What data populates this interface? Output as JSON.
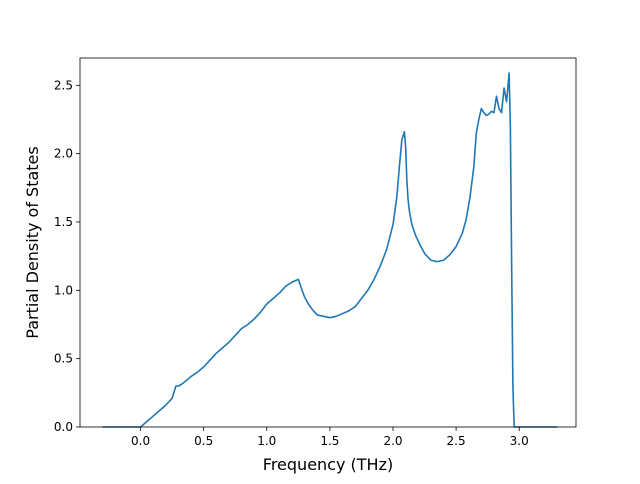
{
  "chart_data": {
    "type": "line",
    "title": "",
    "xlabel": "Frequency (THz)",
    "ylabel": "Partial Density of States",
    "xlim": [
      -0.48,
      3.45
    ],
    "ylim": [
      0.0,
      2.7
    ],
    "xticks": [
      0.0,
      0.5,
      1.0,
      1.5,
      2.0,
      2.5,
      3.0
    ],
    "xtick_labels": [
      "0.0",
      "0.5",
      "1.0",
      "1.5",
      "2.0",
      "2.5",
      "3.0"
    ],
    "yticks": [
      0.0,
      0.5,
      1.0,
      1.5,
      2.0,
      2.5
    ],
    "ytick_labels": [
      "0.0",
      "0.5",
      "1.0",
      "1.5",
      "2.0",
      "2.5"
    ],
    "grid": false,
    "legend": false,
    "colors": {
      "line": "#1f77b4",
      "frame": "#000000",
      "background": "#ffffff"
    },
    "series": [
      {
        "x": [
          -0.3,
          0.0,
          0.05,
          0.1,
          0.15,
          0.2,
          0.25,
          0.28,
          0.3,
          0.32,
          0.35,
          0.4,
          0.45,
          0.5,
          0.55,
          0.6,
          0.65,
          0.7,
          0.75,
          0.8,
          0.85,
          0.9,
          0.95,
          1.0,
          1.05,
          1.1,
          1.15,
          1.2,
          1.25,
          1.28,
          1.3,
          1.33,
          1.36,
          1.4,
          1.45,
          1.5,
          1.55,
          1.6,
          1.65,
          1.7,
          1.75,
          1.8,
          1.85,
          1.9,
          1.95,
          2.0,
          2.03,
          2.05,
          2.07,
          2.09,
          2.1,
          2.11,
          2.12,
          2.13,
          2.15,
          2.18,
          2.21,
          2.25,
          2.3,
          2.35,
          2.4,
          2.45,
          2.5,
          2.55,
          2.58,
          2.61,
          2.64,
          2.66,
          2.68,
          2.7,
          2.72,
          2.74,
          2.76,
          2.78,
          2.8,
          2.82,
          2.84,
          2.86,
          2.88,
          2.9,
          2.92,
          2.93,
          2.94,
          2.95,
          2.96,
          2.97,
          2.98,
          2.99,
          3.0,
          3.1,
          3.3
        ],
        "y": [
          0.0,
          0.0,
          0.04,
          0.08,
          0.12,
          0.16,
          0.21,
          0.3,
          0.3,
          0.31,
          0.33,
          0.37,
          0.4,
          0.44,
          0.49,
          0.54,
          0.58,
          0.62,
          0.67,
          0.72,
          0.75,
          0.79,
          0.84,
          0.9,
          0.94,
          0.98,
          1.03,
          1.06,
          1.08,
          1.0,
          0.95,
          0.9,
          0.86,
          0.82,
          0.81,
          0.8,
          0.81,
          0.83,
          0.85,
          0.88,
          0.94,
          1.0,
          1.08,
          1.18,
          1.3,
          1.48,
          1.68,
          1.9,
          2.1,
          2.16,
          2.05,
          1.8,
          1.66,
          1.58,
          1.48,
          1.4,
          1.34,
          1.27,
          1.22,
          1.21,
          1.22,
          1.26,
          1.32,
          1.42,
          1.52,
          1.68,
          1.9,
          2.15,
          2.25,
          2.33,
          2.3,
          2.28,
          2.29,
          2.31,
          2.3,
          2.42,
          2.33,
          2.3,
          2.48,
          2.38,
          2.59,
          2.2,
          1.2,
          0.3,
          0.0,
          0.0,
          0.0,
          0.0,
          0.0,
          0.0,
          0.0
        ]
      }
    ]
  }
}
